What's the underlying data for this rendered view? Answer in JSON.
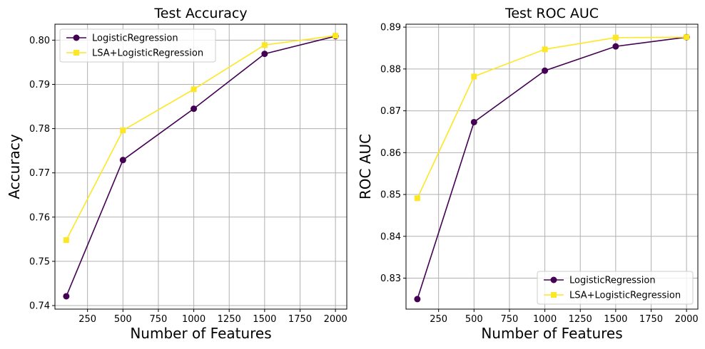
{
  "chart_data": [
    {
      "type": "line",
      "title": "Test Accuracy",
      "xlabel": "Number of Features",
      "ylabel": "Accuracy",
      "x": [
        100,
        500,
        1000,
        1500,
        2000
      ],
      "xticks": [
        250,
        500,
        750,
        1000,
        1250,
        1500,
        1750,
        2000
      ],
      "xlim": [
        20,
        2080
      ],
      "yticks": [
        0.74,
        0.75,
        0.76,
        0.77,
        0.78,
        0.79,
        0.8
      ],
      "yticklabels": [
        "0.74",
        "0.75",
        "0.76",
        "0.77",
        "0.78",
        "0.79",
        "0.80"
      ],
      "ylim": [
        0.7392,
        0.8036
      ],
      "grid": true,
      "legend_position": "top-left",
      "series": [
        {
          "name": "LogisticRegression",
          "color": "#440154",
          "marker": "circle",
          "values": [
            0.7421,
            0.7729,
            0.7845,
            0.7969,
            0.8009
          ]
        },
        {
          "name": "LSA+LogisticRegression",
          "color": "#fde725",
          "marker": "square",
          "values": [
            0.7548,
            0.7796,
            0.7889,
            0.7989,
            0.801
          ]
        }
      ]
    },
    {
      "type": "line",
      "title": "Test ROC AUC",
      "xlabel": "Number of Features",
      "ylabel": "ROC AUC",
      "x": [
        100,
        500,
        1000,
        1500,
        2000
      ],
      "xticks": [
        250,
        500,
        750,
        1000,
        1250,
        1500,
        1750,
        2000
      ],
      "xlim": [
        20,
        2080
      ],
      "yticks": [
        0.83,
        0.84,
        0.85,
        0.86,
        0.87,
        0.88,
        0.89
      ],
      "yticklabels": [
        "0.83",
        "0.84",
        "0.85",
        "0.86",
        "0.87",
        "0.88",
        "0.89"
      ],
      "ylim": [
        0.8226,
        0.8907
      ],
      "grid": true,
      "legend_position": "bottom-right",
      "series": [
        {
          "name": "LogisticRegression",
          "color": "#440154",
          "marker": "circle",
          "values": [
            0.825,
            0.8673,
            0.8796,
            0.8854,
            0.8876
          ]
        },
        {
          "name": "LSA+LogisticRegression",
          "color": "#fde725",
          "marker": "square",
          "values": [
            0.8491,
            0.8782,
            0.8847,
            0.8875,
            0.8876
          ]
        }
      ]
    }
  ]
}
